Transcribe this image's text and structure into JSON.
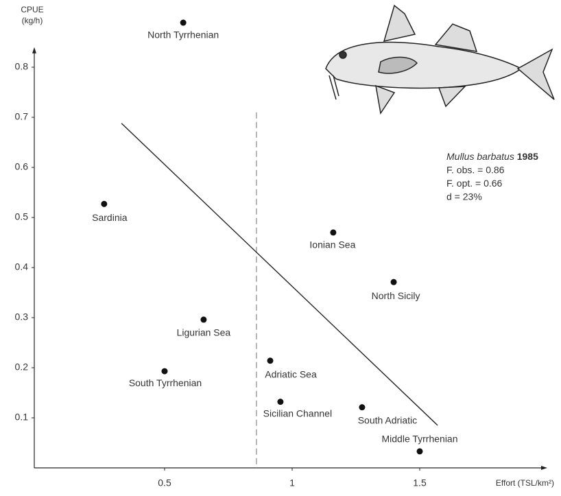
{
  "chart_data": {
    "type": "scatter",
    "y_label_lines": [
      "CPUE",
      "(kg/h)"
    ],
    "x_label": "Effort (TSL/km²)",
    "labels": [
      "North Tyrrhenian",
      "Sardinia",
      "Ionian Sea",
      "North Sicily",
      "Ligurian Sea",
      "South Tyrrhenian",
      "Adriatic Sea",
      "Sicilian Channel",
      "South Adriatic",
      "Middle Tyrrhenian"
    ],
    "x": [
      0.573,
      0.263,
      1.161,
      1.398,
      0.653,
      0.5,
      0.914,
      0.954,
      1.274,
      1.5
    ],
    "y": [
      0.889,
      0.527,
      0.47,
      0.371,
      0.296,
      0.193,
      0.214,
      0.132,
      0.121,
      0.033
    ],
    "color": "#111",
    "xlim": [
      0,
      2
    ],
    "ylim": [
      0,
      0.84
    ],
    "xticks": [
      0.5,
      1,
      1.5
    ],
    "yticks": [
      0.1,
      0.2,
      0.3,
      0.4,
      0.5,
      0.6,
      0.7,
      0.8
    ],
    "trend_line": {
      "x": [
        0.331,
        1.57
      ],
      "y": [
        0.688,
        0.085
      ]
    },
    "reference_line": {
      "x": 0.86,
      "y_top": 0.71
    },
    "annotation": {
      "species": "Mullus barbatus",
      "year": "1985",
      "lines": [
        "F. obs. = 0.86",
        "F. opt.  = 0.66",
        "d = 23%"
      ]
    }
  }
}
